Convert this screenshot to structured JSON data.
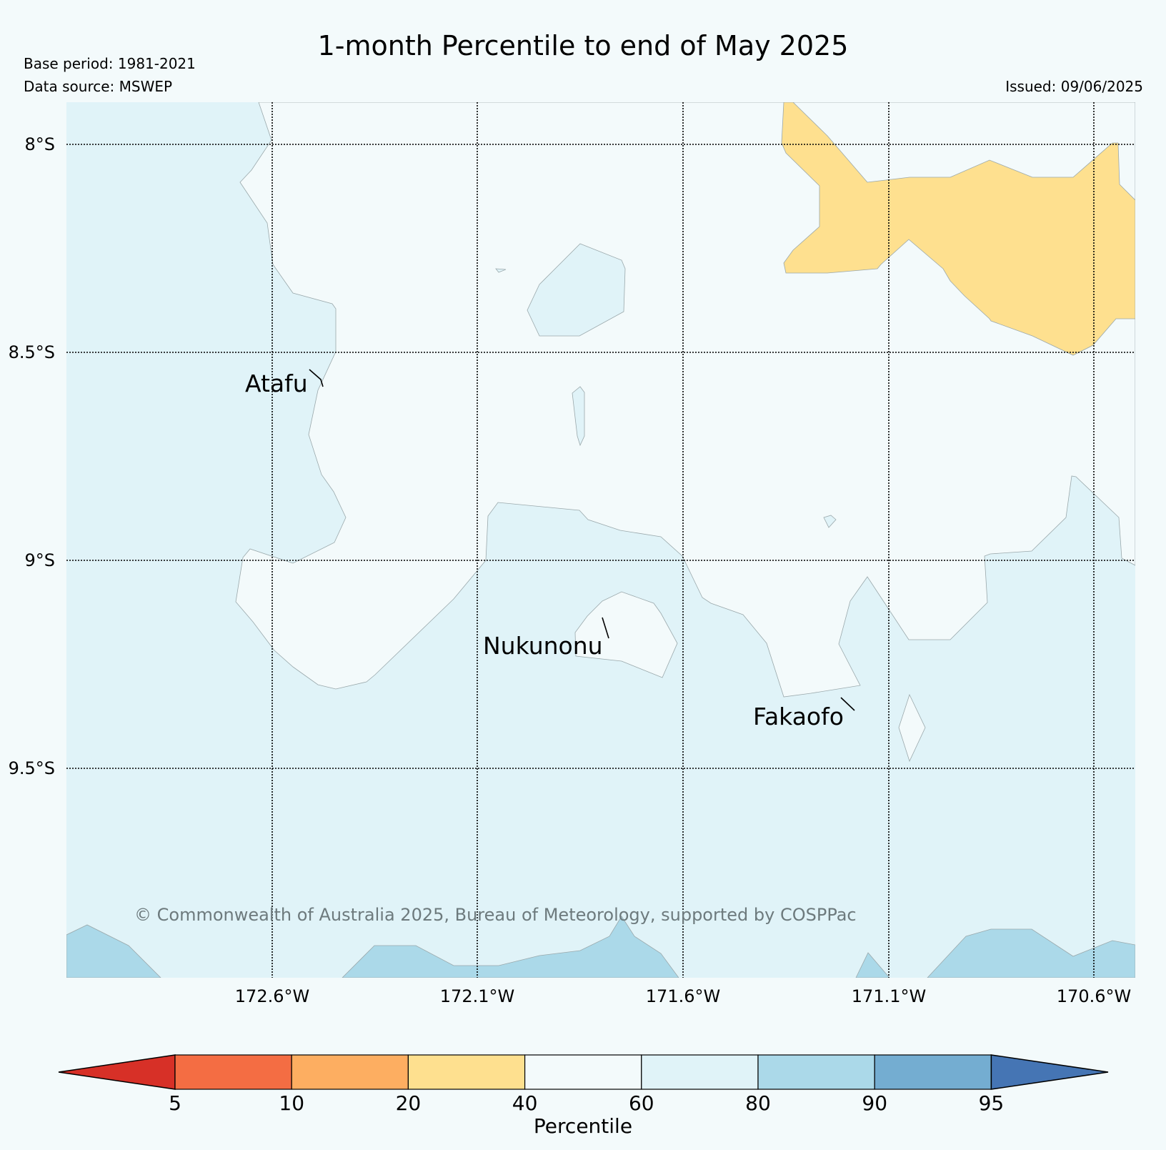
{
  "title": "1-month Percentile to end of May 2025",
  "base_period": "Base period: 1981-2021",
  "data_source": "Data source: MSWEP",
  "issued": "Issued: 09/06/2025",
  "map": {
    "lon_ticks": [
      "172.6°W",
      "172.1°W",
      "171.6°W",
      "171.1°W",
      "170.6°W"
    ],
    "lat_ticks": [
      "8°S",
      "8.5°S",
      "9°S",
      "9.5°S"
    ],
    "places": [
      {
        "name": "Atafu"
      },
      {
        "name": "Nukunonu"
      },
      {
        "name": "Fakaofo"
      }
    ],
    "copyright": "© Commonwealth of Australia 2025, Bureau of Meteorology, supported by COSPPac",
    "region_colors": {
      "p20_40": "#fee08f",
      "p40_60": "#f3fafb",
      "p60_80": "#e0f3f8",
      "p80_90": "#abd9e9"
    }
  },
  "colorbar": {
    "label": "Percentile",
    "ticks": [
      "5",
      "10",
      "20",
      "40",
      "60",
      "80",
      "90",
      "95"
    ],
    "low_extend_color": "#d73027",
    "high_extend_color": "#4575b4",
    "colors": [
      "#f46d43",
      "#fdae61",
      "#fee08f",
      "#f3fafb",
      "#e0f3f8",
      "#abd9e9",
      "#74add1"
    ]
  }
}
